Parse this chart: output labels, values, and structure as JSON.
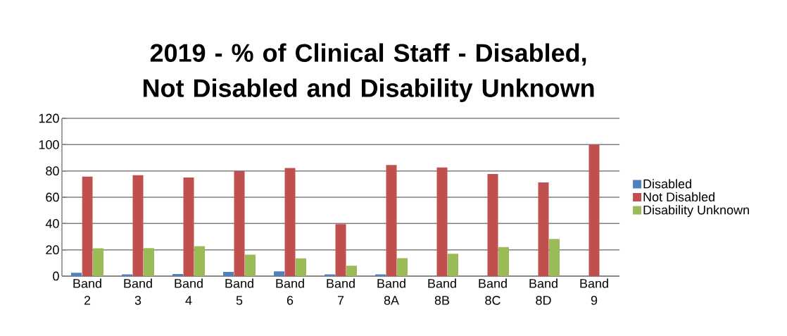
{
  "chart_data": {
    "type": "bar",
    "title": "2019 - % of Clinical Staff - Disabled, Not Disabled and Disability Unknown",
    "categories": [
      "Band 2",
      "Band 3",
      "Band 4",
      "Band 5",
      "Band 6",
      "Band 7",
      "Band 8A",
      "Band 8B",
      "Band 8C",
      "Band 8D",
      "Band 9"
    ],
    "series": [
      {
        "name": "Disabled",
        "color": "#4f81bd",
        "values": [
          2.5,
          1.3,
          1.6,
          3.2,
          3.6,
          1.3,
          1.3,
          0,
          0,
          0,
          0
        ]
      },
      {
        "name": "Not Disabled",
        "color": "#c0504d",
        "values": [
          75.7,
          76.8,
          75.0,
          79.8,
          82.2,
          39.5,
          84.5,
          82.7,
          77.7,
          71.2,
          100
        ]
      },
      {
        "name": "Disability Unknown",
        "color": "#9bbb59",
        "values": [
          21.2,
          21.3,
          22.8,
          16.3,
          13.5,
          7.9,
          13.6,
          17.0,
          22.1,
          28.3,
          0
        ]
      }
    ],
    "ylim": [
      0,
      120
    ],
    "yticks": [
      0,
      20,
      40,
      60,
      80,
      100,
      120
    ],
    "grid": "y",
    "legend": "right"
  }
}
